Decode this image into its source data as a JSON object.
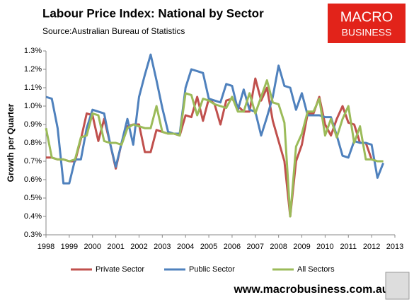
{
  "chart_data": {
    "type": "line",
    "title": "Labour Price Index: National by Sector",
    "subtitle": "Source:Australian Bureau of Statistics",
    "y_label": "Growth per Quarter",
    "footer": "www.macrobusiness.com.au",
    "brand": [
      "MACRO",
      "BUSINESS"
    ],
    "x": [
      1998,
      1998.25,
      1998.5,
      1998.75,
      1999,
      1999.25,
      1999.5,
      1999.75,
      2000,
      2000.25,
      2000.5,
      2000.75,
      2001,
      2001.25,
      2001.5,
      2001.75,
      2002,
      2002.25,
      2002.5,
      2002.75,
      2003,
      2003.25,
      2003.5,
      2003.75,
      2004,
      2004.25,
      2004.5,
      2004.75,
      2005,
      2005.25,
      2005.5,
      2005.75,
      2006,
      2006.25,
      2006.5,
      2006.75,
      2007,
      2007.25,
      2007.5,
      2007.75,
      2008,
      2008.25,
      2008.5,
      2008.75,
      2009,
      2009.25,
      2009.5,
      2009.75,
      2010,
      2010.25,
      2010.5,
      2010.75,
      2011,
      2011.25,
      2011.5,
      2011.75,
      2012,
      2012.25,
      2012.5
    ],
    "series": [
      {
        "name": "Private Sector",
        "color": "#c0504d",
        "values": [
          0.72,
          0.72,
          0.71,
          0.71,
          0.7,
          0.7,
          0.82,
          0.96,
          0.95,
          0.81,
          0.93,
          0.8,
          0.66,
          0.8,
          0.89,
          0.9,
          0.9,
          0.75,
          0.75,
          0.87,
          0.86,
          0.85,
          0.85,
          0.84,
          0.95,
          0.94,
          1.05,
          0.92,
          1.04,
          1.01,
          0.9,
          1.03,
          1.04,
          1.0,
          0.97,
          0.97,
          1.15,
          1.03,
          1.1,
          0.92,
          0.81,
          0.7,
          0.4,
          0.7,
          0.79,
          0.96,
          0.96,
          1.05,
          0.9,
          0.84,
          0.93,
          1.0,
          0.91,
          0.9,
          0.8,
          0.8,
          0.71,
          0.7,
          0.7
        ]
      },
      {
        "name": "Public Sector",
        "color": "#4f81bd",
        "values": [
          1.05,
          1.04,
          0.88,
          0.58,
          0.58,
          0.71,
          0.71,
          0.88,
          0.98,
          0.97,
          0.96,
          0.8,
          0.67,
          0.8,
          0.93,
          0.79,
          1.05,
          1.17,
          1.28,
          1.14,
          0.99,
          0.86,
          0.85,
          0.85,
          1.1,
          1.2,
          1.19,
          1.18,
          1.04,
          1.03,
          1.02,
          1.12,
          1.11,
          0.98,
          1.09,
          0.98,
          0.97,
          0.84,
          0.94,
          1.05,
          1.22,
          1.11,
          1.1,
          0.98,
          1.07,
          0.95,
          0.95,
          0.95,
          0.94,
          0.94,
          0.84,
          0.73,
          0.72,
          0.81,
          0.8,
          0.8,
          0.79,
          0.61,
          0.69
        ]
      },
      {
        "name": "All Sectors",
        "color": "#9bbb59",
        "values": [
          0.88,
          0.72,
          0.71,
          0.71,
          0.7,
          0.71,
          0.83,
          0.84,
          0.96,
          0.95,
          0.81,
          0.8,
          0.8,
          0.79,
          0.88,
          0.9,
          0.89,
          0.88,
          0.88,
          1.0,
          0.86,
          0.85,
          0.85,
          0.84,
          1.07,
          1.06,
          0.95,
          1.04,
          1.03,
          1.01,
          1.0,
          0.99,
          1.05,
          0.97,
          0.97,
          1.07,
          0.96,
          1.05,
          1.14,
          1.02,
          1.01,
          0.91,
          0.4,
          0.78,
          0.85,
          0.97,
          0.97,
          1.04,
          0.84,
          0.93,
          0.83,
          0.93,
          1.0,
          0.8,
          0.89,
          0.71,
          0.71,
          0.7,
          0.7
        ]
      }
    ],
    "xlim": [
      1998,
      2013
    ],
    "xticks": [
      1998,
      1999,
      2000,
      2001,
      2002,
      2003,
      2004,
      2005,
      2006,
      2007,
      2008,
      2009,
      2010,
      2011,
      2012,
      2013
    ],
    "ylim": [
      0.3,
      1.3
    ],
    "yticks": [
      {
        "value": 0.3,
        "label": "0.3%"
      },
      {
        "value": 0.4,
        "label": "0.4%"
      },
      {
        "value": 0.5,
        "label": "0.5%"
      },
      {
        "value": 0.6,
        "label": "0.6%"
      },
      {
        "value": 0.7,
        "label": "0.7%"
      },
      {
        "value": 0.8,
        "label": "0.8%"
      },
      {
        "value": 0.9,
        "label": "0.9%"
      },
      {
        "value": 1.0,
        "label": "1.0%"
      },
      {
        "value": 1.1,
        "label": "1.1%"
      },
      {
        "value": 1.2,
        "label": "1.2%"
      },
      {
        "value": 1.3,
        "label": "1.3%"
      }
    ],
    "grid": false,
    "legend": "bottom"
  }
}
